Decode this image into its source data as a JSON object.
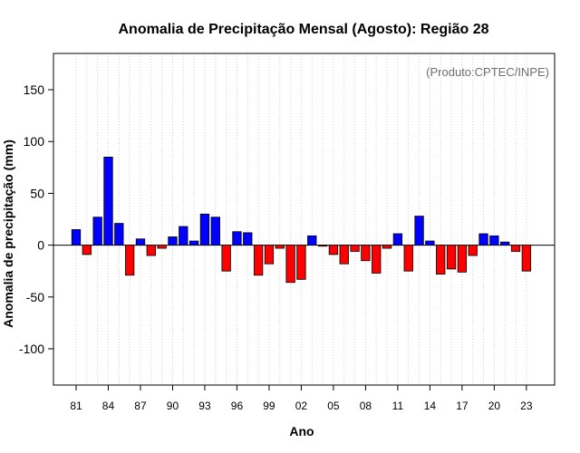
{
  "chart_data": {
    "type": "bar",
    "title": "Anomalia de Precipitação Mensal (Agosto): Região 28",
    "xlabel": "Ano",
    "ylabel": "Anomalia de precipitação (mm)",
    "credit": "(Produto:CPTEC/INPE)",
    "ylim": [
      -135,
      185
    ],
    "yticks": [
      -100,
      -50,
      0,
      50,
      100,
      150
    ],
    "x_tick_labels": [
      "81",
      "84",
      "87",
      "90",
      "93",
      "96",
      "99",
      "02",
      "05",
      "08",
      "11",
      "14",
      "17",
      "20",
      "23"
    ],
    "x_tick_years": [
      1981,
      1984,
      1987,
      1990,
      1993,
      1996,
      1999,
      2002,
      2005,
      2008,
      2011,
      2014,
      2017,
      2020,
      2023
    ],
    "grid": "vertical dotted",
    "colors": {
      "positive": "#0000ff",
      "negative": "#ff0000",
      "bar_edge": "#000000",
      "grid": "#d3d3d3",
      "frame": "#000000"
    },
    "years": [
      1981,
      1982,
      1983,
      1984,
      1985,
      1986,
      1987,
      1988,
      1989,
      1990,
      1991,
      1992,
      1993,
      1994,
      1995,
      1996,
      1997,
      1998,
      1999,
      2000,
      2001,
      2002,
      2003,
      2004,
      2005,
      2006,
      2007,
      2008,
      2009,
      2010,
      2011,
      2012,
      2013,
      2014,
      2015,
      2016,
      2017,
      2018,
      2019,
      2020,
      2021,
      2022,
      2023
    ],
    "values": [
      15,
      -9,
      27,
      85,
      21,
      -29,
      6,
      -10,
      -3,
      8,
      18,
      4,
      30,
      27,
      -25,
      13,
      12,
      -29,
      -18,
      -3,
      -36,
      -33,
      9,
      -1,
      -9,
      -18,
      -6,
      -15,
      -27,
      -3,
      11,
      -25,
      28,
      4,
      -28,
      -23,
      -26,
      -10,
      11,
      9,
      3,
      -6,
      -25
    ]
  }
}
